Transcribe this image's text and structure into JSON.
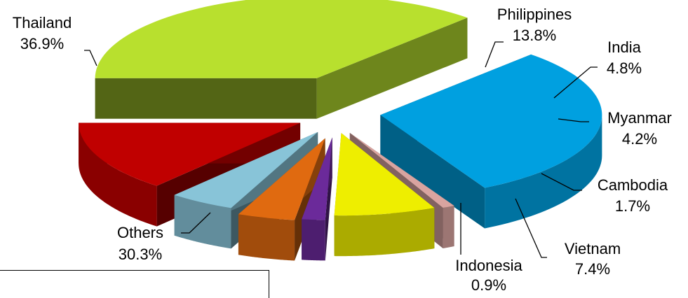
{
  "chart_data": {
    "type": "pie",
    "style": "3d-exploded",
    "categories": [
      "Thailand",
      "Others",
      "Indonesia",
      "Vietnam",
      "Cambodia",
      "Myanmar",
      "India",
      "Philippines"
    ],
    "values": [
      36.9,
      30.3,
      0.9,
      7.4,
      1.7,
      4.2,
      4.8,
      13.8
    ],
    "value_labels": [
      "36.9%",
      "30.3%",
      "0.9%",
      "7.4%",
      "1.7%",
      "4.2%",
      "4.8%",
      "13.8%"
    ],
    "colors": [
      "#b8e02e",
      "#00a0e0",
      "#d9a4a0",
      "#eeee00",
      "#6b2a9a",
      "#e06a10",
      "#88c4d8",
      "#c00000"
    ],
    "legend": "none"
  }
}
